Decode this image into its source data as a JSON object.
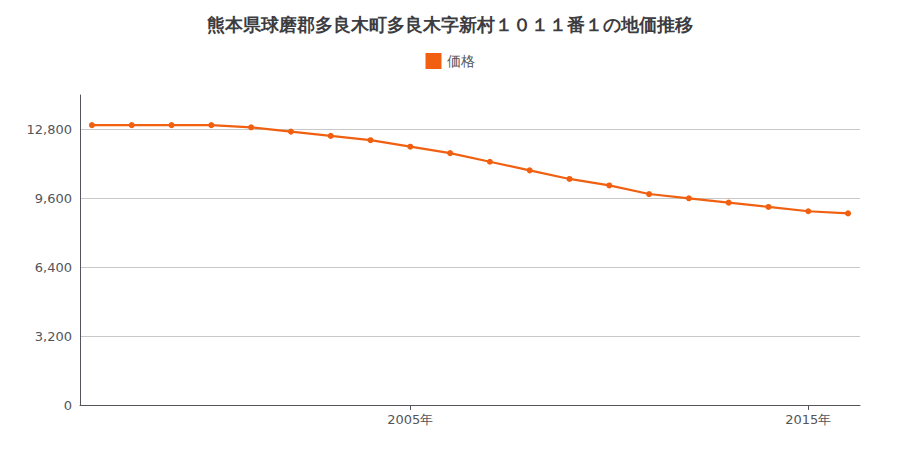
{
  "chart_data": {
    "type": "line",
    "title": "熊本県球磨郡多良木町多良木字新村１０１１番１の地価推移",
    "x": [
      1997,
      1998,
      1999,
      2000,
      2001,
      2002,
      2003,
      2004,
      2005,
      2006,
      2007,
      2008,
      2009,
      2010,
      2011,
      2012,
      2013,
      2014,
      2015,
      2016
    ],
    "series": [
      {
        "name": "価格",
        "color": "#f06010",
        "marker": "circle",
        "values": [
          13000,
          13000,
          13000,
          13000,
          12900,
          12700,
          12500,
          12300,
          12000,
          11700,
          11300,
          10900,
          10500,
          10200,
          9800,
          9600,
          9400,
          9200,
          9000,
          8900
        ]
      }
    ],
    "xlim": [
      1996.7,
      2016.3
    ],
    "xticks": [
      {
        "value": 2005,
        "label": "2005年"
      },
      {
        "value": 2015,
        "label": "2015年"
      }
    ],
    "ylim": [
      0,
      14400
    ],
    "yticks": [
      0,
      {
        "value": 3200,
        "label": "3,200"
      },
      {
        "value": 6400,
        "label": "6,400"
      },
      {
        "value": 9600,
        "label": "9,600"
      },
      {
        "value": 12800,
        "label": "12,800"
      }
    ],
    "grid": "y",
    "legend": "top"
  }
}
